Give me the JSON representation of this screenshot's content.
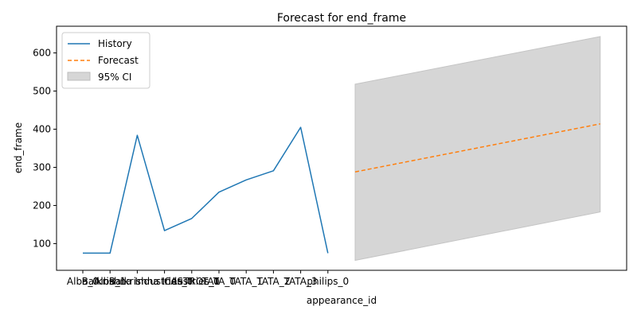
{
  "chart_data": {
    "type": "line",
    "title": "Forecast for end_frame",
    "xlabel": "appearance_id",
    "ylabel": "end_frame",
    "ylim": [
      30,
      670
    ],
    "yticks": [
      100,
      200,
      300,
      400,
      500,
      600
    ],
    "grid": false,
    "legend_position": "top-left",
    "x_tick_labels": [
      "Alba_0",
      "Alba_1",
      "Balkrishna Industries_0",
      "Balkrishna Industries_1",
      "CASTROL_0",
      "TATA_0",
      "TATA_1",
      "TATA_2",
      "TATA_3",
      "philips_0"
    ],
    "series": [
      {
        "name": "History",
        "style": "solid",
        "color": "#1f77b4",
        "x": [
          0,
          1,
          2,
          3,
          4,
          5,
          6,
          7,
          8,
          9
        ],
        "values": [
          75,
          75,
          384,
          134,
          166,
          235,
          267,
          291,
          405,
          75
        ]
      },
      {
        "name": "Forecast",
        "style": "dashed",
        "color": "#ff7f0e",
        "x": [
          10,
          19
        ],
        "values": [
          288,
          414
        ]
      }
    ],
    "confidence_band": {
      "name": "95% CI",
      "color": "#d6d6d6",
      "x": [
        10,
        19
      ],
      "lower": [
        56,
        183
      ],
      "upper": [
        518,
        643
      ]
    }
  }
}
